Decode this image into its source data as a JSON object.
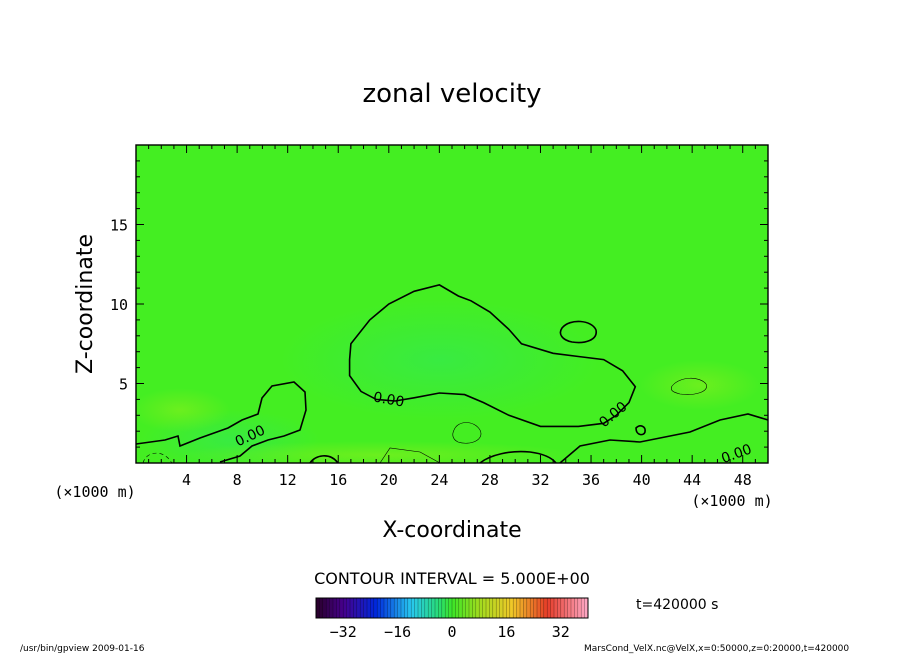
{
  "chart_data": {
    "type": "heatmap",
    "title": "zonal velocity",
    "xlabel": "X-coordinate",
    "ylabel": "Z-coordinate",
    "x_unit": "(×1000 m)",
    "y_unit": "(×1000 m)",
    "xlim": [
      0,
      50
    ],
    "ylim": [
      0,
      20
    ],
    "x_ticks": [
      4,
      8,
      12,
      16,
      20,
      24,
      28,
      32,
      36,
      40,
      44,
      48
    ],
    "y_ticks": [
      5,
      10,
      15
    ],
    "contour_interval_text": "CONTOUR INTERVAL = 5.000E+00",
    "contour_labels": [
      "0.00",
      "0.00",
      "0.00",
      "0.00"
    ],
    "time_label": "t=420000 s",
    "colorbar": {
      "min": -40,
      "max": 40,
      "ticks": [
        -32,
        -16,
        0,
        16,
        32
      ]
    },
    "background_color": "#44ee22",
    "zero_contour": [
      {
        "x": 17,
        "z": 7.5
      },
      {
        "x": 18.5,
        "z": 9
      },
      {
        "x": 20,
        "z": 10
      },
      {
        "x": 22,
        "z": 10.8
      },
      {
        "x": 24,
        "z": 11.2
      },
      {
        "x": 25.5,
        "z": 10.5
      },
      {
        "x": 26.5,
        "z": 10.2
      },
      {
        "x": 28,
        "z": 9.5
      },
      {
        "x": 29.5,
        "z": 8.4
      },
      {
        "x": 30.5,
        "z": 7.5
      },
      {
        "x": 33,
        "z": 6.9
      },
      {
        "x": 35,
        "z": 6.7
      },
      {
        "x": 37,
        "z": 6.5
      },
      {
        "x": 38.5,
        "z": 5.8
      },
      {
        "x": 39.5,
        "z": 4.8
      },
      {
        "x": 39,
        "z": 3.8
      },
      {
        "x": 38,
        "z": 3
      },
      {
        "x": 37,
        "z": 2.5
      },
      {
        "x": 35,
        "z": 2.3
      },
      {
        "x": 32,
        "z": 2.3
      },
      {
        "x": 29.5,
        "z": 3
      },
      {
        "x": 27.5,
        "z": 3.8
      },
      {
        "x": 26,
        "z": 4.3
      },
      {
        "x": 24,
        "z": 4.4
      },
      {
        "x": 22,
        "z": 4.1
      },
      {
        "x": 20.5,
        "z": 3.9
      },
      {
        "x": 19,
        "z": 4
      },
      {
        "x": 17.8,
        "z": 4.5
      },
      {
        "x": 16.9,
        "z": 5.5
      },
      {
        "x": 16.9,
        "z": 6.5
      }
    ],
    "colorbar_hint": "blue-purple (negative) through green (zero) to red-pink (positive)",
    "footer_left": "/usr/bin/gpview  2009-01-16",
    "footer_right": "MarsCond_VelX.nc@VelX,x=0:50000,z=0:20000,t=420000"
  }
}
